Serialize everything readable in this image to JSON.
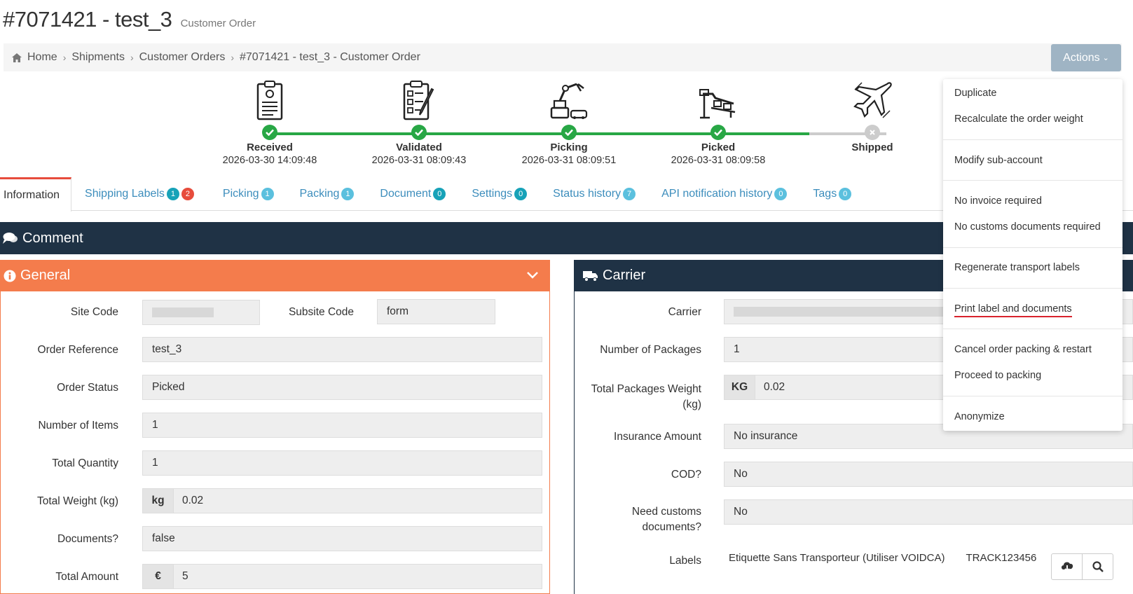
{
  "header": {
    "title": "#7071421 - test_3",
    "subtitle": "Customer Order"
  },
  "breadcrumb": [
    "Home",
    "Shipments",
    "Customer Orders",
    "#7071421 - test_3 - Customer Order"
  ],
  "actions_label": "Actions",
  "steps": [
    {
      "name": "Received",
      "time": "2026-03-30 14:09:48",
      "done": true
    },
    {
      "name": "Validated",
      "time": "2026-03-31 08:09:43",
      "done": true
    },
    {
      "name": "Picking",
      "time": "2026-03-31 08:09:51",
      "done": true
    },
    {
      "name": "Picked",
      "time": "2026-03-31 08:09:58",
      "done": true
    },
    {
      "name": "Shipped",
      "time": "",
      "done": false
    }
  ],
  "tabs": [
    {
      "label": "Information"
    },
    {
      "label": "Shipping Labels",
      "badges": [
        "1",
        "2"
      ]
    },
    {
      "label": "Picking",
      "badges": [
        "1"
      ]
    },
    {
      "label": "Packing",
      "badges": [
        "1"
      ]
    },
    {
      "label": "Document",
      "badges": [
        "0"
      ]
    },
    {
      "label": "Settings",
      "badges": [
        "0"
      ]
    },
    {
      "label": "Status history",
      "badges": [
        "7"
      ]
    },
    {
      "label": "API notification history",
      "badges": [
        "0"
      ]
    },
    {
      "label": "Tags",
      "badges": [
        "0"
      ]
    }
  ],
  "comment": {
    "title": "Comment"
  },
  "general": {
    "title": "General",
    "site_code_label": "Site Code",
    "subsite_code_label": "Subsite Code",
    "subsite_code_value": "form",
    "order_reference_label": "Order Reference",
    "order_reference_value": "test_3",
    "order_status_label": "Order Status",
    "order_status_value": "Picked",
    "items_label": "Number of Items",
    "items_value": "1",
    "quantity_label": "Total Quantity",
    "quantity_value": "1",
    "weight_label": "Total Weight (kg)",
    "weight_unit": "kg",
    "weight_value": "0.02",
    "documents_label": "Documents?",
    "documents_value": "false",
    "amount_label": "Total Amount",
    "amount_currency": "€",
    "amount_value": "5"
  },
  "carrier": {
    "title": "Carrier",
    "carrier_label": "Carrier",
    "packages_label": "Number of Packages",
    "packages_value": "1",
    "pkg_weight_label_1": "Total Packages Weight",
    "pkg_weight_label_2": "(kg)",
    "pkg_weight_unit": "KG",
    "pkg_weight_value": "0.02",
    "insurance_label": "Insurance Amount",
    "insurance_value": "No insurance",
    "cod_label": "COD?",
    "cod_value": "No",
    "customs_label_1": "Need customs",
    "customs_label_2": "documents?",
    "customs_value": "No",
    "labels_label": "Labels",
    "label_name": "Etiquette Sans Transporteur (Utiliser VOIDCA)",
    "tracking": "TRACK123456"
  },
  "actions_menu": {
    "duplicate": "Duplicate",
    "recalculate": "Recalculate the order weight",
    "modify_subaccount": "Modify sub-account",
    "no_invoice": "No invoice required",
    "no_customs": "No customs documents required",
    "regenerate": "Regenerate transport labels",
    "print": "Print label and documents",
    "cancel_packing": "Cancel order packing & restart",
    "proceed_packing": "Proceed to packing",
    "anonymize": "Anonymize"
  },
  "colors": {
    "accent_orange": "#f47c4c",
    "dark_navy": "#1f3245",
    "success_green": "#28a745",
    "link_blue": "#3c8dbc",
    "action_button": "#9fb4c4"
  }
}
